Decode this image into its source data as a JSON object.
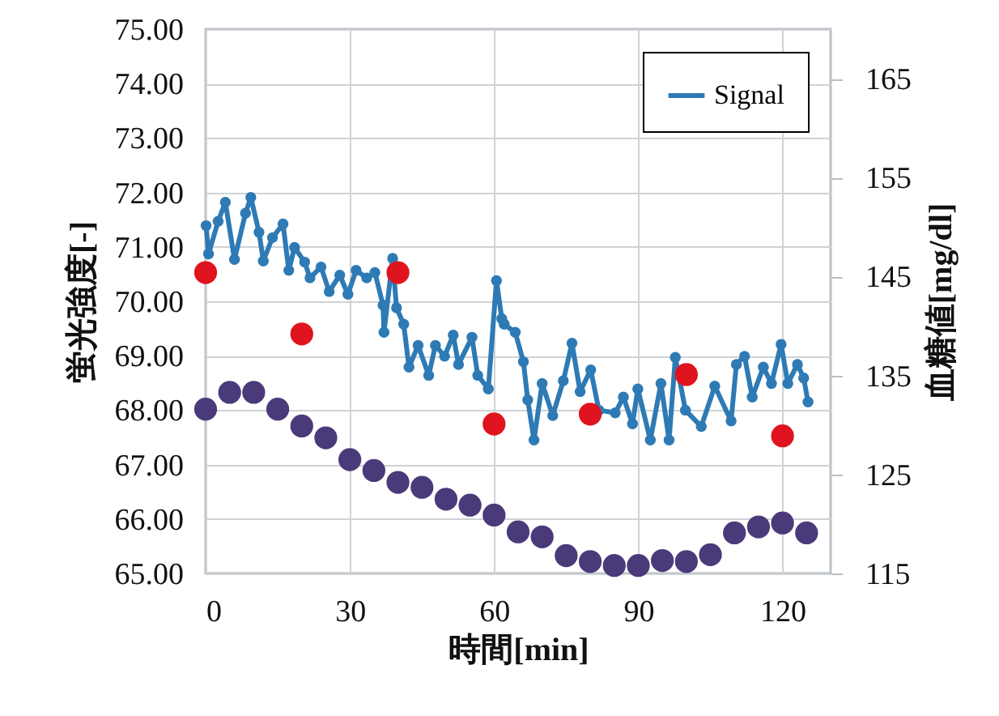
{
  "chart_data": {
    "type": "line",
    "xlabel": "時間[min]",
    "ylabel": "蛍光強度[-]",
    "y2label": "血糖値[mg/dl]",
    "xlim": [
      0,
      130
    ],
    "xticks": [
      0,
      30,
      60,
      90,
      120
    ],
    "ylim": [
      65,
      75
    ],
    "yticks": [
      {
        "value": 65,
        "label": "65.00"
      },
      {
        "value": 66,
        "label": "66.00"
      },
      {
        "value": 67,
        "label": "67.00"
      },
      {
        "value": 68,
        "label": "68.00"
      },
      {
        "value": 69,
        "label": "69.00"
      },
      {
        "value": 70,
        "label": "70.00"
      },
      {
        "value": 71,
        "label": "71.00"
      },
      {
        "value": 72,
        "label": "72.00"
      },
      {
        "value": 73,
        "label": "73.00"
      },
      {
        "value": 74,
        "label": "74.00"
      },
      {
        "value": 75,
        "label": "75.00"
      }
    ],
    "y2lim": [
      115,
      170
    ],
    "y2ticks": [
      115,
      125,
      135,
      145,
      155,
      165
    ],
    "grid": true,
    "legend": "top right",
    "marker": "circle",
    "line_style": "solid",
    "series": [
      {
        "name": "Signal",
        "color": "#2e7ab5",
        "x": [
          0.1,
          0.6,
          2.6,
          4.1,
          6,
          8.3,
          9.4,
          11.1,
          12,
          13.9,
          16.1,
          17.3,
          18.5,
          20.6,
          21.7,
          24,
          25.7,
          27.9,
          29.6,
          31.3,
          33.5,
          35.2,
          36.9,
          37.1,
          38.9,
          39.7,
          41.2,
          42.3,
          44.2,
          46.4,
          47.8,
          49.7,
          51.5,
          52.6,
          55.4,
          56.6,
          58.8,
          60.5,
          61.6,
          62.1,
          64.4,
          66.1,
          67,
          68.3,
          70,
          72.2,
          74.4,
          76.2,
          77.9,
          80.1,
          81.8,
          85.2,
          86.9,
          88.8,
          89.9,
          92.5,
          94.7,
          96.4,
          97.7,
          99.8,
          103.1,
          105.9,
          109.3,
          110.4,
          112.1,
          113.7,
          116,
          117.7,
          119.7,
          121.1,
          123.1,
          124.4,
          125.3
        ],
        "values": [
          71.39,
          70.87,
          71.47,
          71.82,
          70.77,
          71.62,
          71.91,
          71.27,
          70.74,
          71.17,
          71.42,
          70.57,
          70.99,
          70.72,
          70.43,
          70.63,
          70.18,
          70.48,
          70.13,
          70.57,
          70.43,
          70.53,
          69.93,
          69.43,
          70.79,
          69.88,
          69.58,
          68.79,
          69.19,
          68.64,
          69.19,
          68.99,
          69.38,
          68.84,
          69.34,
          68.64,
          68.39,
          70.38,
          69.68,
          69.58,
          69.43,
          68.89,
          68.19,
          67.45,
          68.49,
          67.9,
          68.54,
          69.23,
          68.34,
          68.74,
          68.0,
          67.95,
          68.24,
          67.75,
          68.39,
          67.45,
          68.49,
          67.45,
          68.97,
          68.0,
          67.7,
          68.44,
          67.8,
          68.84,
          68.99,
          68.24,
          68.79,
          68.49,
          69.21,
          68.49,
          68.84,
          68.59,
          68.15
        ]
      },
      {
        "type": "scatter",
        "axis": "y2",
        "color": "#e0141e",
        "x": [
          0,
          20,
          40,
          60,
          80,
          100,
          120
        ],
        "values": [
          145.4,
          139.2,
          145.4,
          130.1,
          131.1,
          135.1,
          128.9
        ]
      },
      {
        "type": "scatter",
        "axis": "y2",
        "color": "#4a3a7a",
        "x": [
          0,
          5,
          10,
          15,
          20,
          25,
          30,
          35,
          40,
          45,
          50,
          55,
          60,
          65,
          70,
          75,
          80,
          85,
          90,
          95,
          100,
          105,
          110,
          115,
          120,
          125
        ],
        "values": [
          131.6,
          133.3,
          133.3,
          131.6,
          129.9,
          128.7,
          126.5,
          125.4,
          124.2,
          123.7,
          122.5,
          121.9,
          120.9,
          119.2,
          118.7,
          116.8,
          116.2,
          115.8,
          115.8,
          116.3,
          116.2,
          116.9,
          119.1,
          119.7,
          120.1,
          119.1
        ]
      }
    ]
  }
}
